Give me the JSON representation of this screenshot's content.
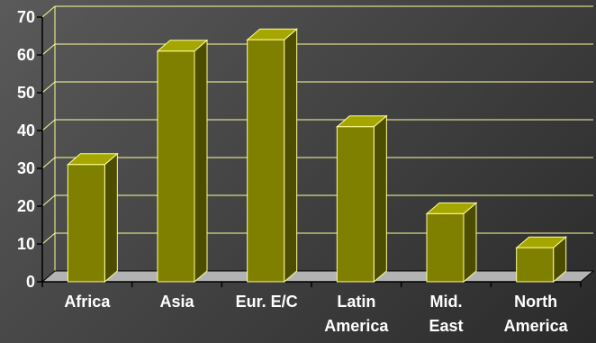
{
  "chart_data": {
    "type": "bar",
    "categories": [
      "Africa",
      "Asia",
      "Eur. E/C",
      "Latin America",
      "Mid. East",
      "North America"
    ],
    "category_lines": [
      [
        "Africa"
      ],
      [
        "Asia"
      ],
      [
        "Eur. E/C"
      ],
      [
        "Latin",
        "America"
      ],
      [
        "Mid.",
        "East"
      ],
      [
        "North",
        "America"
      ]
    ],
    "values": [
      31,
      61,
      64,
      41,
      18,
      9
    ],
    "ylim": [
      0,
      70
    ],
    "yticks": [
      "0",
      "10",
      "20",
      "30",
      "40",
      "50",
      "60",
      "70"
    ],
    "title": "",
    "xlabel": "",
    "ylabel": "",
    "grid": true,
    "style": "3d-column",
    "colors": {
      "bar_front": "#808000",
      "bar_side": "#4d4d00",
      "bar_top": "#a6a600",
      "bar_edge": "#ffff99",
      "grid": "#ffff99",
      "floor": "#b3b3b3",
      "text": "#ffffff"
    }
  }
}
